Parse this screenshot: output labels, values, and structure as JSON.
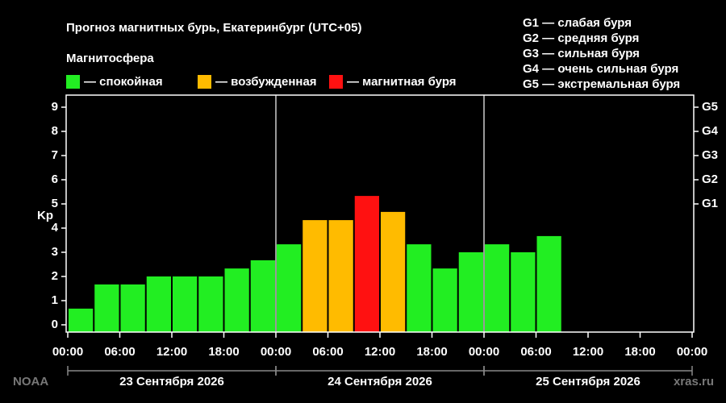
{
  "chart_data": {
    "type": "bar",
    "title": "Прогноз магнитных бурь, Екатеринбург (UTC+05)",
    "legend_title": "Магнитосфера",
    "legend": [
      {
        "label": "— спокойная",
        "color": "#22ee22"
      },
      {
        "label": "— возбужденная",
        "color": "#ffbb00"
      },
      {
        "label": "— магнитная буря",
        "color": "#ff1111"
      }
    ],
    "storm_scale": [
      "G1 — слабая буря",
      "G2 — средняя буря",
      "G3 — сильная буря",
      "G4 — очень сильная буря",
      "G5 — экстремальная буря"
    ],
    "ylabel": "Kp",
    "x_step": 3,
    "values": [
      0.67,
      1.67,
      1.67,
      2.0,
      2.0,
      2.0,
      2.33,
      2.67,
      3.33,
      4.33,
      4.33,
      5.33,
      4.67,
      3.33,
      2.33,
      3.0,
      3.33,
      3.0,
      3.67,
      null,
      null,
      null,
      null,
      null
    ],
    "colors": [
      "#22ee22",
      "#22ee22",
      "#22ee22",
      "#22ee22",
      "#22ee22",
      "#22ee22",
      "#22ee22",
      "#22ee22",
      "#22ee22",
      "#ffbb00",
      "#ffbb00",
      "#ff1111",
      "#ffbb00",
      "#22ee22",
      "#22ee22",
      "#22ee22",
      "#22ee22",
      "#22ee22",
      "#22ee22",
      null,
      null,
      null,
      null,
      null
    ],
    "xlim": [
      0,
      72
    ],
    "xticks": [
      {
        "value": 0,
        "label": "00:00"
      },
      {
        "value": 6,
        "label": "06:00"
      },
      {
        "value": 12,
        "label": "12:00"
      },
      {
        "value": 18,
        "label": "18:00"
      },
      {
        "value": 24,
        "label": "00:00"
      },
      {
        "value": 30,
        "label": "06:00"
      },
      {
        "value": 36,
        "label": "12:00"
      },
      {
        "value": 42,
        "label": "18:00"
      },
      {
        "value": 48,
        "label": "00:00"
      },
      {
        "value": 54,
        "label": "06:00"
      },
      {
        "value": 60,
        "label": "12:00"
      },
      {
        "value": 66,
        "label": "18:00"
      },
      {
        "value": 72,
        "label": "00:00"
      }
    ],
    "days": [
      "23 Сентября 2026",
      "24 Сентября 2026",
      "25 Сентября 2026"
    ],
    "ylim": [
      -0.3,
      9.5
    ],
    "yticks": [
      0,
      1,
      2,
      3,
      4,
      5,
      6,
      7,
      8,
      9
    ],
    "y2ticks": [
      {
        "value": 5,
        "label": "G1"
      },
      {
        "value": 6,
        "label": "G2"
      },
      {
        "value": 7,
        "label": "G3"
      },
      {
        "value": 8,
        "label": "G4"
      },
      {
        "value": 9,
        "label": "G5"
      }
    ],
    "source": "NOAA",
    "site": "xras.ru"
  }
}
